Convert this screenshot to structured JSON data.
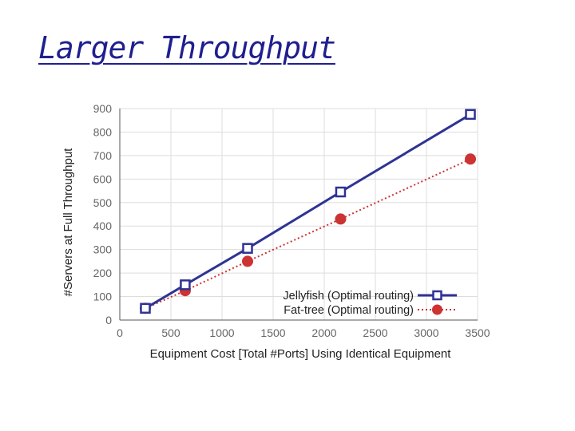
{
  "slide": {
    "title": "Larger Throughput"
  },
  "colors": {
    "title": "#1f1f8f",
    "grid": "#dddddd",
    "axis": "#555555",
    "jellyfish": "#2e3394",
    "fattree": "#cc3333"
  },
  "chart_data": {
    "type": "line",
    "title": "",
    "xlabel": "Equipment Cost [Total #Ports] Using Identical Equipment",
    "ylabel": "#Servers at Full Throughput",
    "xlim": [
      0,
      3500
    ],
    "ylim": [
      0,
      900
    ],
    "xticks": [
      0,
      500,
      1000,
      1500,
      2000,
      2500,
      3000,
      3500
    ],
    "yticks": [
      0,
      100,
      200,
      300,
      400,
      500,
      600,
      700,
      800,
      900
    ],
    "grid": true,
    "legend_position": "bottom-right",
    "series": [
      {
        "name": "Jellyfish (Optimal routing)",
        "marker": "open-square",
        "line": "solid",
        "color": "#2e3394",
        "x": [
          250,
          640,
          1250,
          2160,
          3430
        ],
        "y": [
          50,
          150,
          305,
          545,
          875
        ]
      },
      {
        "name": "Fat-tree (Optimal routing)",
        "marker": "filled-circle",
        "line": "dotted",
        "color": "#cc3333",
        "x": [
          250,
          640,
          1250,
          2160,
          3430
        ],
        "y": [
          50,
          125,
          250,
          430,
          685
        ]
      }
    ]
  }
}
